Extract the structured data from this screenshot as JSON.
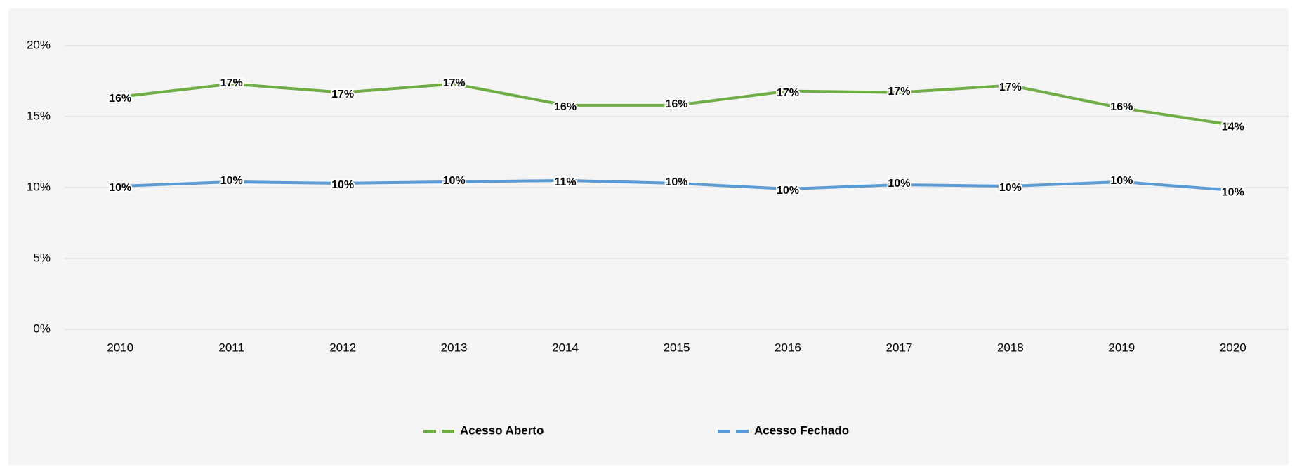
{
  "chart_data": {
    "type": "line",
    "categories": [
      "2010",
      "2011",
      "2012",
      "2013",
      "2014",
      "2015",
      "2016",
      "2017",
      "2018",
      "2019",
      "2020"
    ],
    "series": [
      {
        "name": "Acesso Aberto",
        "color": "#70ad47",
        "values": [
          16.4,
          17.3,
          16.7,
          17.3,
          15.8,
          15.8,
          16.8,
          16.7,
          17.2,
          15.6,
          14.4
        ],
        "value_labels": [
          "16%",
          "17%",
          "17%",
          "17%",
          "16%",
          "16%",
          "17%",
          "17%",
          "17%",
          "16%",
          "14%"
        ]
      },
      {
        "name": "Acesso Fechado",
        "color": "#5b9bd5",
        "values": [
          10.1,
          10.4,
          10.3,
          10.4,
          10.5,
          10.3,
          9.9,
          10.2,
          10.1,
          10.4,
          9.8
        ],
        "value_labels": [
          "10%",
          "10%",
          "10%",
          "10%",
          "11%",
          "10%",
          "10%",
          "10%",
          "10%",
          "10%",
          "10%"
        ]
      }
    ],
    "ylim": [
      0,
      20
    ],
    "yticks": [
      {
        "value": 0,
        "label": "0%"
      },
      {
        "value": 5,
        "label": "5%"
      },
      {
        "value": 10,
        "label": "10%"
      },
      {
        "value": 15,
        "label": "15%"
      },
      {
        "value": 20,
        "label": "20%"
      }
    ],
    "grid": true,
    "legend": "bottom"
  }
}
